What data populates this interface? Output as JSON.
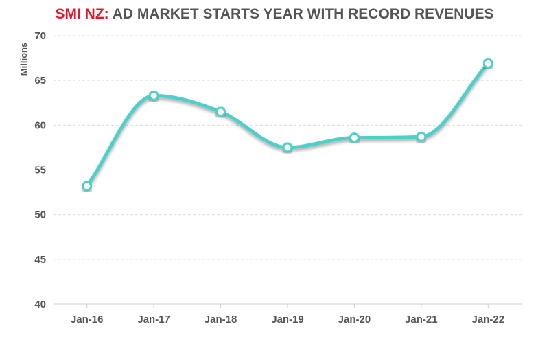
{
  "title": {
    "brand": "SMI NZ:",
    "text": "AD MARKET STARTS YEAR WITH RECORD REVENUES"
  },
  "colors": {
    "brand": "#e3162a",
    "text": "#555555",
    "line": "#4fcfc9",
    "grid": "#dddddd",
    "axis": "#cccccc"
  },
  "chart_data": {
    "type": "line",
    "title": "SMI NZ: AD MARKET STARTS YEAR WITH RECORD REVENUES",
    "xlabel": "",
    "ylabel": "Millions",
    "categories": [
      "Jan-16",
      "Jan-17",
      "Jan-18",
      "Jan-19",
      "Jan-20",
      "Jan-21",
      "Jan-22"
    ],
    "series": [
      {
        "values": [
          53.2,
          63.3,
          61.5,
          57.5,
          58.6,
          58.7,
          66.9
        ]
      }
    ],
    "ylim": [
      40,
      70
    ],
    "yticks": [
      40,
      45,
      50,
      55,
      60,
      65,
      70
    ],
    "grid": true,
    "smooth": true,
    "markers": "hollow-circle",
    "legend": "none"
  }
}
